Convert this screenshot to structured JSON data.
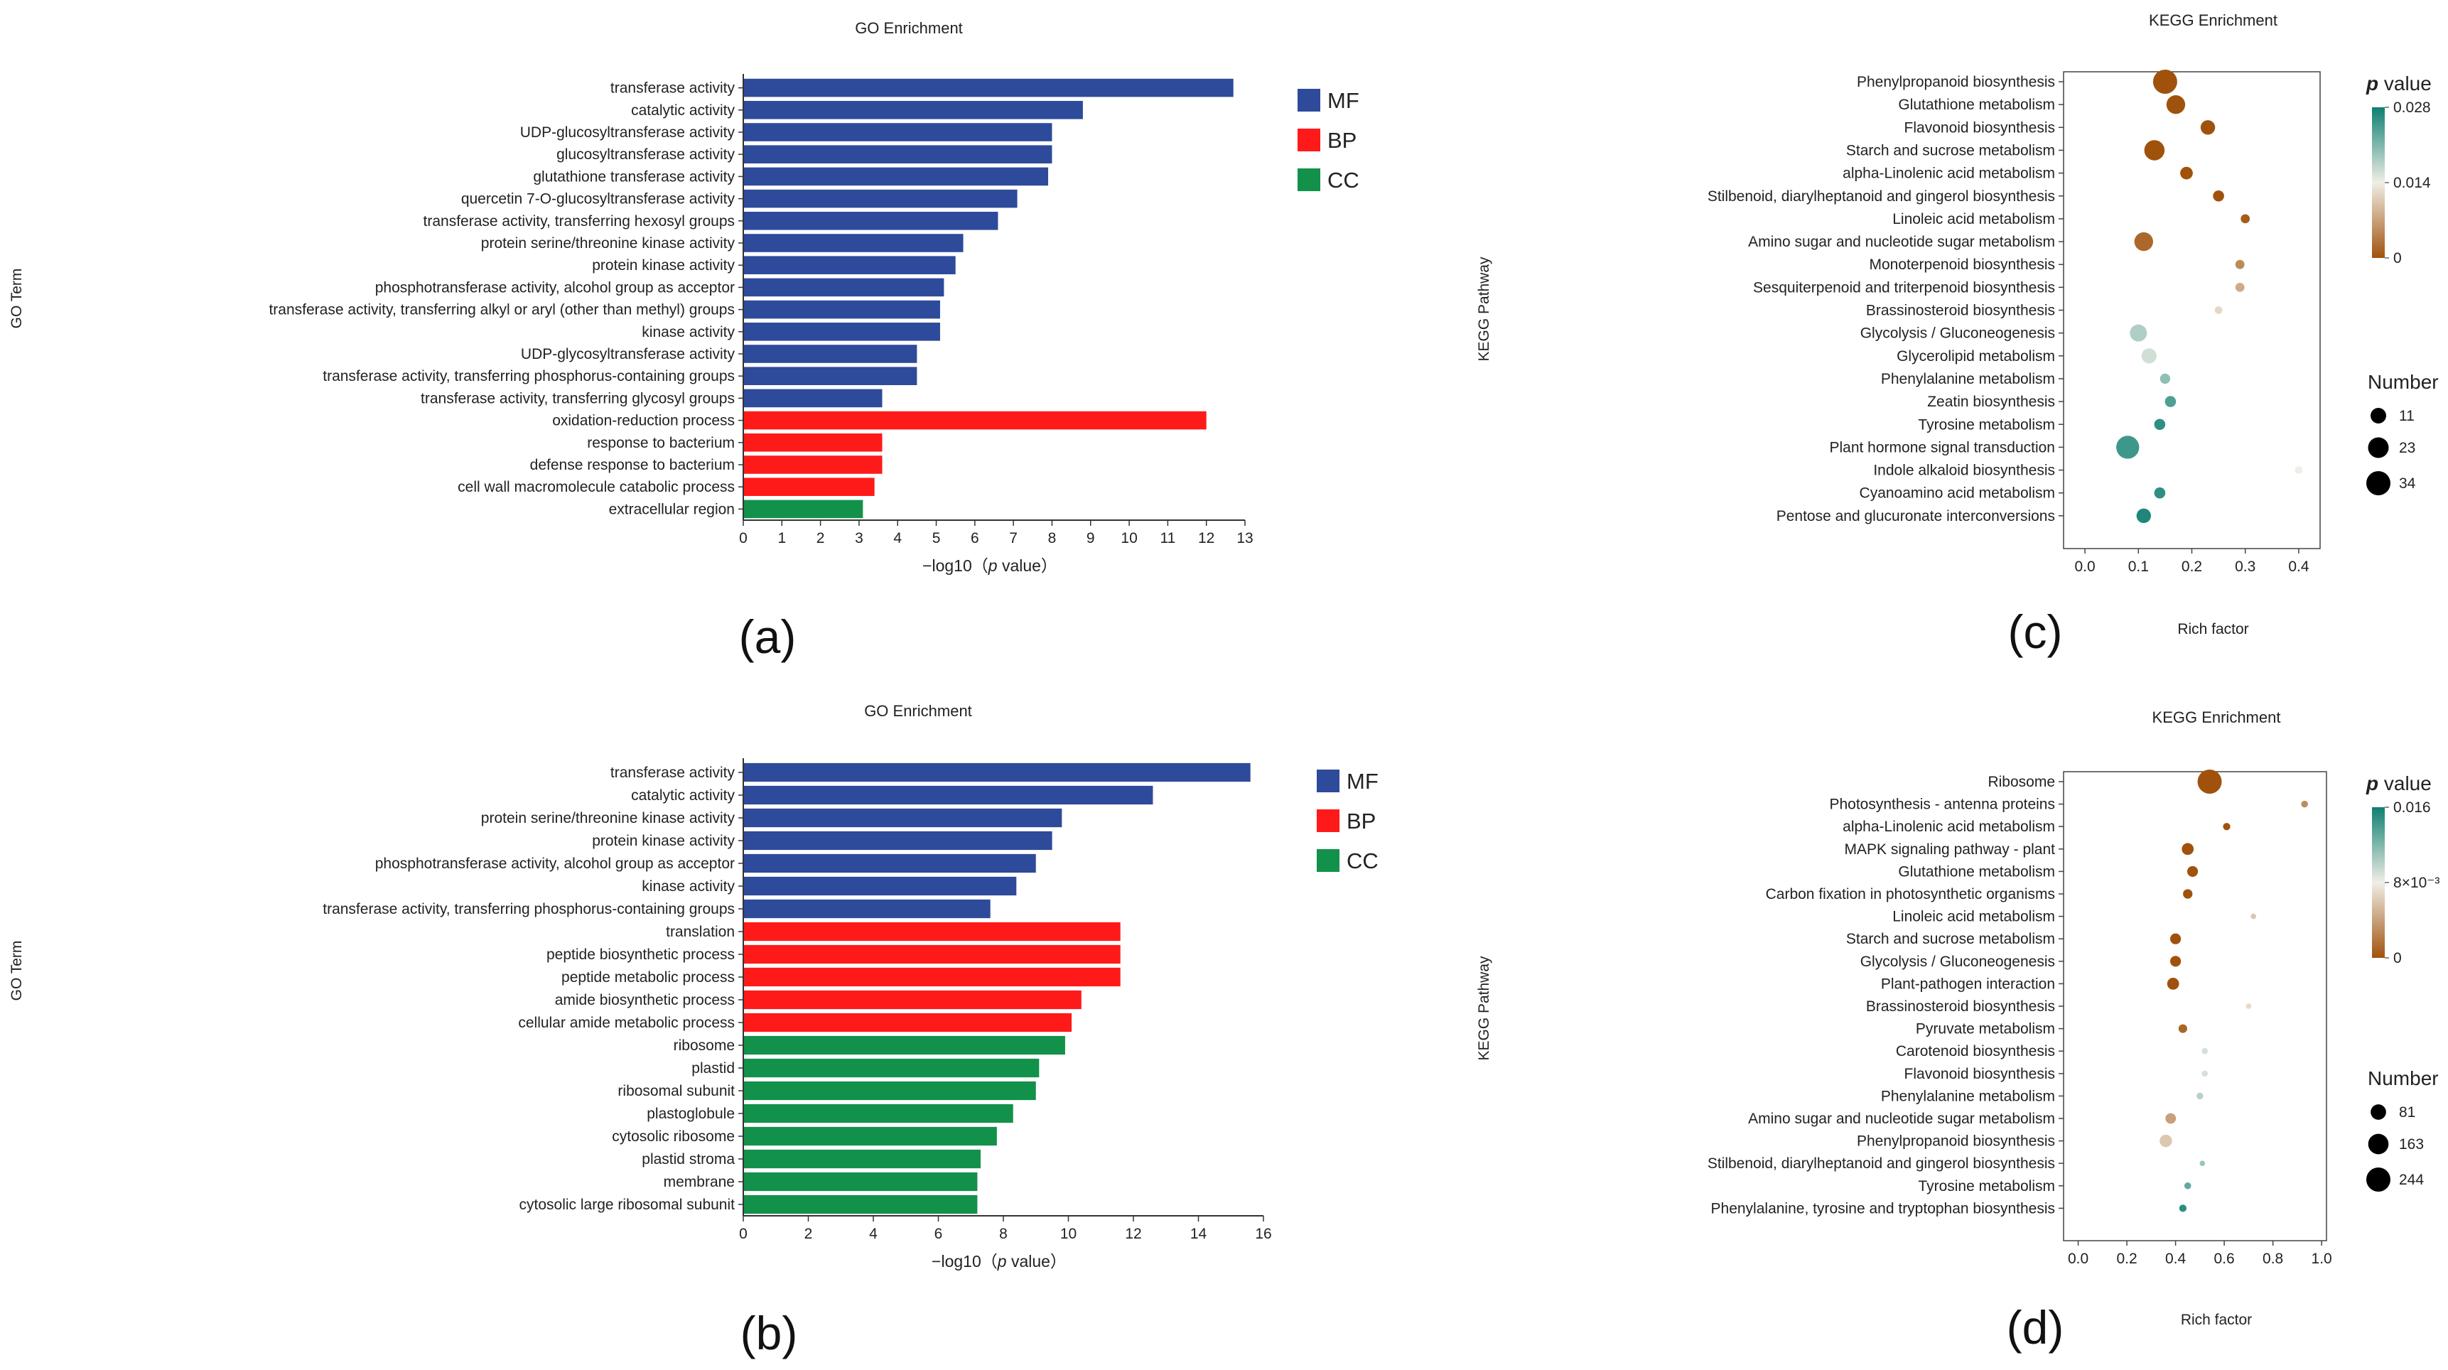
{
  "chart_data": [
    {
      "id": "a",
      "type": "bar",
      "orientation": "horizontal",
      "caption": "(a)",
      "title": "GO Enrichment",
      "xlabel": "−log10（",
      "xlabel_p": "p",
      "xlabel_tail": " value）",
      "ylabel": "GO Term",
      "xlim": [
        0,
        13
      ],
      "xticks": [
        "0",
        "1",
        "2",
        "3",
        "4",
        "5",
        "6",
        "7",
        "8",
        "9",
        "10",
        "11",
        "12",
        "13"
      ],
      "legend": [
        {
          "name": "MF",
          "color": "#2e4a9a"
        },
        {
          "name": "BP",
          "color": "#ff1a1a"
        },
        {
          "name": "CC",
          "color": "#12914a"
        }
      ],
      "categories": [
        "transferase activity",
        "catalytic activity",
        "UDP-glucosyltransferase activity",
        "glucosyltransferase activity",
        "glutathione transferase activity",
        "quercetin 7-O-glucosyltransferase activity",
        "transferase activity, transferring hexosyl groups",
        "protein serine/threonine kinase activity",
        "protein kinase activity",
        "phosphotransferase activity, alcohol group as acceptor",
        "transferase activity, transferring alkyl or aryl (other than methyl) groups",
        "kinase activity",
        "UDP-glycosyltransferase activity",
        "transferase activity, transferring phosphorus-containing groups",
        "transferase activity, transferring glycosyl groups",
        "oxidation-reduction process",
        "response to bacterium",
        "defense response to bacterium",
        "cell wall macromolecule catabolic process",
        "extracellular region"
      ],
      "values": [
        12.7,
        8.8,
        8.0,
        8.0,
        7.9,
        7.1,
        6.6,
        5.7,
        5.5,
        5.2,
        5.1,
        5.1,
        4.5,
        4.5,
        3.6,
        12.0,
        3.6,
        3.6,
        3.4,
        3.1
      ],
      "groups": [
        "MF",
        "MF",
        "MF",
        "MF",
        "MF",
        "MF",
        "MF",
        "MF",
        "MF",
        "MF",
        "MF",
        "MF",
        "MF",
        "MF",
        "MF",
        "BP",
        "BP",
        "BP",
        "BP",
        "CC"
      ]
    },
    {
      "id": "b",
      "type": "bar",
      "orientation": "horizontal",
      "caption": "(b)",
      "title": "GO Enrichment",
      "xlabel": "−log10（",
      "xlabel_p": "p",
      "xlabel_tail": " value）",
      "ylabel": "GO Term",
      "xlim": [
        0,
        16
      ],
      "xticks": [
        "0",
        "2",
        "4",
        "6",
        "8",
        "10",
        "12",
        "14",
        "16"
      ],
      "legend": [
        {
          "name": "MF",
          "color": "#2e4a9a"
        },
        {
          "name": "BP",
          "color": "#ff1a1a"
        },
        {
          "name": "CC",
          "color": "#12914a"
        }
      ],
      "categories": [
        "transferase activity",
        "catalytic activity",
        "protein serine/threonine kinase activity",
        "protein kinase activity",
        "phosphotransferase activity, alcohol group as acceptor",
        "kinase activity",
        "transferase activity, transferring phosphorus-containing groups",
        "translation",
        "peptide biosynthetic process",
        "peptide metabolic process",
        "amide biosynthetic process",
        "cellular amide metabolic process",
        "ribosome",
        "plastid",
        "ribosomal subunit",
        "plastoglobule",
        "cytosolic ribosome",
        "plastid stroma",
        "membrane",
        "cytosolic large ribosomal subunit"
      ],
      "values": [
        15.6,
        12.6,
        9.8,
        9.5,
        9.0,
        8.4,
        7.6,
        11.6,
        11.6,
        11.6,
        10.4,
        10.1,
        9.9,
        9.1,
        9.0,
        8.3,
        7.8,
        7.3,
        7.2,
        7.2
      ],
      "groups": [
        "MF",
        "MF",
        "MF",
        "MF",
        "MF",
        "MF",
        "MF",
        "BP",
        "BP",
        "BP",
        "BP",
        "BP",
        "CC",
        "CC",
        "CC",
        "CC",
        "CC",
        "CC",
        "CC",
        "CC"
      ]
    },
    {
      "id": "c",
      "type": "scatter",
      "caption": "(c)",
      "title": "KEGG Enrichment",
      "xlabel": "Rich factor",
      "ylabel": "KEGG Pathway",
      "xlim": [
        -0.04,
        0.44
      ],
      "xticks": [
        0.0,
        0.1,
        0.2,
        0.3,
        0.4
      ],
      "xtick_labels": [
        "0.0",
        "0.1",
        "0.2",
        "0.3",
        "0.4"
      ],
      "colorbar": {
        "title_p": "p",
        "title_tail": " value",
        "max_label": "0.028",
        "mid_label": "0.014",
        "min_label": "0",
        "max": 0.028,
        "low_color": "#a0520c",
        "mid_color": "#f0eee6",
        "high_color": "#0e7f72"
      },
      "size_legend": {
        "title": "Number",
        "entries": [
          {
            "label": "11",
            "value": 11
          },
          {
            "label": "23",
            "value": 23
          },
          {
            "label": "34",
            "value": 34
          }
        ],
        "max": 34
      },
      "categories": [
        "Phenylpropanoid biosynthesis",
        "Glutathione metabolism",
        "Flavonoid biosynthesis",
        "Starch and sucrose metabolism",
        "alpha-Linolenic acid metabolism",
        "Stilbenoid, diarylheptanoid and gingerol biosynthesis",
        "Linoleic acid metabolism",
        "Amino sugar and nucleotide sugar metabolism",
        "Monoterpenoid biosynthesis",
        "Sesquiterpenoid and triterpenoid biosynthesis",
        "Brassinosteroid biosynthesis",
        "Glycolysis / Gluconeogenesis",
        "Glycerolipid metabolism",
        "Phenylalanine metabolism",
        "Zeatin biosynthesis",
        "Tyrosine metabolism",
        "Plant hormone signal transduction",
        "Indole alkaloid biosynthesis",
        "Cyanoamino acid metabolism",
        "Pentose and glucuronate interconversions"
      ],
      "x": [
        0.15,
        0.17,
        0.23,
        0.13,
        0.19,
        0.25,
        0.3,
        0.11,
        0.29,
        0.29,
        0.25,
        0.1,
        0.12,
        0.15,
        0.16,
        0.14,
        0.08,
        0.4,
        0.14,
        0.11
      ],
      "counts": [
        34,
        18,
        9,
        22,
        6,
        4,
        2,
        18,
        2,
        2,
        1,
        14,
        10,
        3,
        4,
        4,
        30,
        1,
        4,
        9
      ],
      "pvalues": [
        0.0,
        0.0,
        0.0,
        0.0,
        0.0,
        0.0,
        0.001,
        0.002,
        0.005,
        0.008,
        0.012,
        0.018,
        0.016,
        0.02,
        0.024,
        0.026,
        0.025,
        0.014,
        0.026,
        0.027
      ]
    },
    {
      "id": "d",
      "type": "scatter",
      "caption": "(d)",
      "title": "KEGG Enrichment",
      "xlabel": "Rich factor",
      "ylabel": "KEGG Pathway",
      "xlim": [
        -0.06,
        1.02
      ],
      "xticks": [
        0.0,
        0.2,
        0.4,
        0.6,
        0.8,
        1.0
      ],
      "xtick_labels": [
        "0.0",
        "0.2",
        "0.4",
        "0.6",
        "0.8",
        "1.0"
      ],
      "colorbar": {
        "title_p": "p",
        "title_tail": " value",
        "max_label": "0.016",
        "mid_label": "8×10⁻³",
        "min_label": "0",
        "max": 0.016,
        "low_color": "#a0520c",
        "mid_color": "#f0eee6",
        "high_color": "#0e7f72"
      },
      "size_legend": {
        "title": "Number",
        "entries": [
          {
            "label": "81",
            "value": 81
          },
          {
            "label": "163",
            "value": 163
          },
          {
            "label": "244",
            "value": 244
          }
        ],
        "max": 244
      },
      "categories": [
        "Ribosome",
        "Photosynthesis - antenna proteins",
        "alpha-Linolenic acid metabolism",
        "MAPK signaling pathway - plant",
        "Glutathione metabolism",
        "Carbon fixation in photosynthetic organisms",
        "Linoleic acid metabolism",
        "Starch and sucrose metabolism",
        "Glycolysis / Gluconeogenesis",
        "Plant-pathogen interaction",
        "Brassinosteroid biosynthesis",
        "Pyruvate metabolism",
        "Carotenoid biosynthesis",
        "Flavonoid biosynthesis",
        "Phenylalanine metabolism",
        "Amino sugar and nucleotide sugar metabolism",
        "Phenylpropanoid biosynthesis",
        "Stilbenoid, diarylheptanoid and gingerol biosynthesis",
        "Tyrosine metabolism",
        "Phenylalanine, tyrosine and tryptophan biosynthesis"
      ],
      "x": [
        0.54,
        0.93,
        0.61,
        0.45,
        0.47,
        0.45,
        0.72,
        0.4,
        0.4,
        0.39,
        0.7,
        0.43,
        0.52,
        0.52,
        0.5,
        0.38,
        0.36,
        0.51,
        0.45,
        0.43
      ],
      "counts": [
        244,
        6,
        8,
        40,
        30,
        20,
        2,
        30,
        30,
        40,
        2,
        15,
        4,
        4,
        6,
        28,
        45,
        2,
        6,
        8
      ],
      "pvalues": [
        0.0,
        0.003,
        0.0,
        0.0,
        0.0,
        0.0,
        0.006,
        0.0,
        0.0,
        0.0,
        0.007,
        0.001,
        0.009,
        0.009,
        0.01,
        0.004,
        0.006,
        0.011,
        0.013,
        0.015
      ]
    }
  ]
}
